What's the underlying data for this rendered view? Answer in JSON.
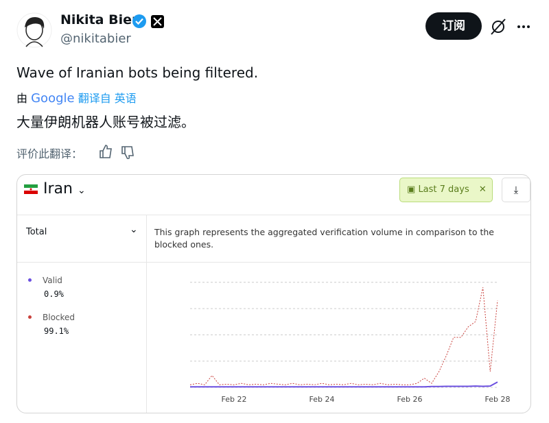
{
  "tweet": {
    "name": "Nikita Bier",
    "handle": "@nikitabier",
    "subscribe": "订阅",
    "text": "Wave of Iranian bots being filtered.",
    "translated_by_prefix": "由",
    "translated_by": "Google",
    "translated_from": "翻译自 英语",
    "translation": "大量伊朗机器人账号被过滤。",
    "rate_translation": "评价此翻译："
  },
  "card": {
    "country": "Iran",
    "date_filter": "Last 7 days",
    "metric": "Total",
    "description": "This graph represents the aggregated verification volume in comparison to the blocked ones."
  },
  "chart_data": {
    "type": "line",
    "categories": [
      null,
      null,
      null,
      null,
      null,
      null,
      "Feb 22",
      null,
      null,
      null,
      null,
      null,
      null,
      null,
      null,
      null,
      null,
      null,
      "Feb 24",
      null,
      null,
      null,
      null,
      null,
      null,
      null,
      null,
      null,
      null,
      null,
      "Feb 26",
      null,
      null,
      null,
      null,
      null,
      null,
      null,
      null,
      null,
      null,
      null,
      "Feb 28"
    ],
    "ylim": [
      0,
      4.3
    ],
    "series": [
      {
        "name": "Valid",
        "share": "0.9%",
        "color": "#6b4fe0",
        "values": [
          0.02,
          0.02,
          0.02,
          0.02,
          0.02,
          0.02,
          0.02,
          0.02,
          0.02,
          0.02,
          0.02,
          0.02,
          0.02,
          0.02,
          0.02,
          0.02,
          0.02,
          0.02,
          0.02,
          0.02,
          0.02,
          0.02,
          0.02,
          0.02,
          0.02,
          0.02,
          0.02,
          0.02,
          0.02,
          0.02,
          0.02,
          0.02,
          0.02,
          0.03,
          0.03,
          0.04,
          0.04,
          0.04,
          0.04,
          0.05,
          0.04,
          0.05,
          0.2
        ]
      },
      {
        "name": "Blocked",
        "share": "99.1%",
        "color": "#c9413c",
        "values": [
          0.1,
          0.15,
          0.1,
          0.45,
          0.1,
          0.12,
          0.1,
          0.15,
          0.1,
          0.12,
          0.1,
          0.15,
          0.12,
          0.1,
          0.15,
          0.1,
          0.12,
          0.1,
          0.15,
          0.1,
          0.12,
          0.1,
          0.15,
          0.1,
          0.12,
          0.1,
          0.15,
          0.1,
          0.12,
          0.1,
          0.1,
          0.15,
          0.35,
          0.15,
          0.6,
          1.2,
          1.9,
          1.9,
          2.3,
          2.5,
          3.8,
          0.6,
          3.3
        ]
      }
    ]
  }
}
